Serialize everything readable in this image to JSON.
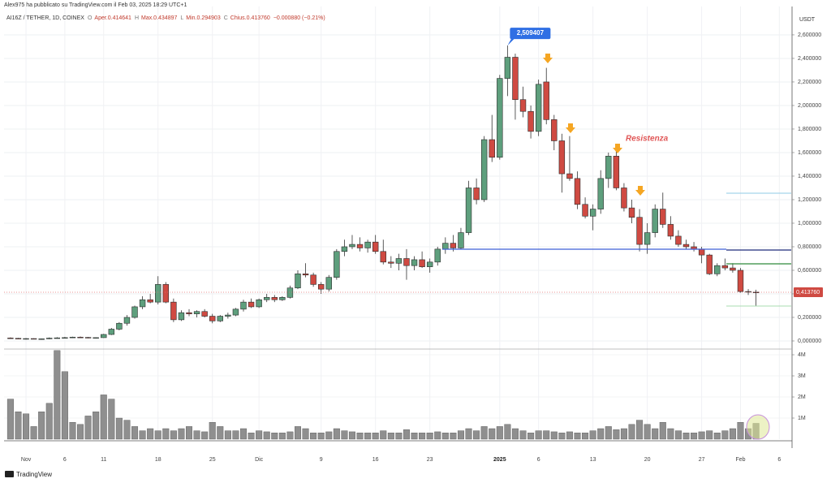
{
  "chart_data": {
    "type": "candlestick",
    "author_line": "Alex975 ha pubblicato su TradingView.com il Feb 03, 2025 18:29 UTC+1",
    "symbol": "AI16Z / TETHER, 1D, COINEX",
    "open_key": "O",
    "open_text": "Aper.0.414641",
    "high_key": "H",
    "high_text": "Max.0.434897",
    "low_key": "L",
    "low_text": "Min.0.294903",
    "close_key": "C",
    "close_text": "Chius.0.413760",
    "change_text": "−0.000880 (−0.21%)",
    "currency": "USDT",
    "annotation": "Resistenza",
    "brand": "TradingView",
    "up_color": "#5e9f7d",
    "down_color": "#cf4a42",
    "volume_color": "#8f8f8f",
    "categories": [
      "",
      "",
      "Nov",
      "",
      "",
      "",
      "",
      "6",
      "",
      "",
      "",
      "",
      "11",
      "",
      "",
      "",
      "",
      "",
      "",
      "18",
      "",
      "",
      "",
      "",
      "",
      "",
      "25",
      "",
      "",
      "",
      "",
      "",
      "Dic",
      "",
      "",
      "",
      "",
      "",
      "",
      "",
      "9",
      "",
      "",
      "",
      "",
      "",
      "",
      "16",
      "",
      "",
      "",
      "",
      "",
      "",
      "23",
      "",
      "",
      "",
      "",
      "",
      "",
      "",
      "",
      "2025",
      "",
      "",
      "",
      "",
      "6",
      "",
      "",
      "",
      "",
      "",
      "",
      "13",
      "",
      "",
      "",
      "",
      "",
      "",
      "20",
      "",
      "",
      "",
      "",
      "",
      "",
      "27",
      "",
      "",
      "",
      "",
      "Feb",
      "",
      "",
      "",
      "",
      "6"
    ],
    "open": [
      0.025,
      0.022,
      0.018,
      0.02,
      0.016,
      0.018,
      0.024,
      0.026,
      0.028,
      0.032,
      0.03,
      0.025,
      0.028,
      0.055,
      0.1,
      0.15,
      0.2,
      0.29,
      0.35,
      0.33,
      0.48,
      0.33,
      0.18,
      0.24,
      0.23,
      0.25,
      0.21,
      0.17,
      0.21,
      0.22,
      0.27,
      0.33,
      0.29,
      0.35,
      0.37,
      0.35,
      0.37,
      0.45,
      0.57,
      0.56,
      0.48,
      0.44,
      0.54,
      0.76,
      0.8,
      0.82,
      0.79,
      0.84,
      0.76,
      0.67,
      0.66,
      0.7,
      0.64,
      0.69,
      0.63,
      0.67,
      0.78,
      0.83,
      0.79,
      0.92,
      1.3,
      1.2,
      1.71,
      1.56,
      2.23,
      2.41,
      2.05,
      1.95,
      1.78,
      2.2,
      1.88,
      1.7,
      1.42,
      1.38,
      1.16,
      1.06,
      1.12,
      1.38,
      1.57,
      1.3,
      1.13,
      1.05,
      0.82,
      0.92,
      1.12,
      0.99,
      0.89,
      0.82,
      0.8,
      0.78,
      0.73,
      0.57,
      0.64,
      0.62,
      0.6,
      0.42,
      0.414641,
      null,
      null,
      null
    ],
    "high": [
      0.03,
      0.026,
      0.024,
      0.022,
      0.021,
      0.03,
      0.032,
      0.034,
      0.036,
      0.038,
      0.034,
      0.03,
      0.06,
      0.11,
      0.16,
      0.22,
      0.3,
      0.38,
      0.4,
      0.55,
      0.5,
      0.36,
      0.26,
      0.27,
      0.26,
      0.27,
      0.23,
      0.22,
      0.24,
      0.28,
      0.35,
      0.36,
      0.36,
      0.4,
      0.39,
      0.38,
      0.47,
      0.6,
      0.66,
      0.58,
      0.5,
      0.56,
      0.78,
      0.86,
      0.9,
      0.88,
      0.86,
      0.9,
      0.86,
      0.72,
      0.74,
      0.78,
      0.72,
      0.76,
      0.7,
      0.8,
      0.88,
      0.9,
      0.96,
      1.36,
      1.38,
      1.74,
      1.92,
      2.26,
      2.509407,
      2.44,
      2.16,
      2.0,
      2.22,
      2.32,
      1.92,
      1.76,
      1.74,
      1.44,
      1.22,
      1.16,
      1.45,
      1.6,
      1.62,
      1.34,
      1.2,
      1.12,
      1.0,
      1.16,
      1.26,
      1.06,
      0.94,
      0.86,
      0.84,
      0.8,
      0.74,
      0.66,
      0.7,
      0.66,
      0.62,
      0.44,
      0.434897,
      null,
      null,
      null
    ],
    "low": [
      0.018,
      0.016,
      0.012,
      0.014,
      0.01,
      0.015,
      0.02,
      0.022,
      0.024,
      0.026,
      0.022,
      0.02,
      0.026,
      0.05,
      0.09,
      0.13,
      0.19,
      0.27,
      0.32,
      0.31,
      0.32,
      0.16,
      0.17,
      0.21,
      0.2,
      0.2,
      0.15,
      0.16,
      0.19,
      0.21,
      0.25,
      0.28,
      0.28,
      0.33,
      0.33,
      0.34,
      0.36,
      0.44,
      0.54,
      0.46,
      0.4,
      0.42,
      0.52,
      0.72,
      0.78,
      0.76,
      0.75,
      0.74,
      0.65,
      0.62,
      0.6,
      0.52,
      0.6,
      0.62,
      0.58,
      0.64,
      0.74,
      0.76,
      0.78,
      0.9,
      1.16,
      1.18,
      1.52,
      1.54,
      2.08,
      1.88,
      1.9,
      1.72,
      1.74,
      1.84,
      1.62,
      1.26,
      1.36,
      1.12,
      1.04,
      0.94,
      1.08,
      1.3,
      1.28,
      1.1,
      1.0,
      0.76,
      0.74,
      0.88,
      0.96,
      0.86,
      0.8,
      0.78,
      0.76,
      0.66,
      0.56,
      0.55,
      0.6,
      0.58,
      0.41,
      0.39,
      0.294903,
      null,
      null,
      null
    ],
    "close": [
      0.022,
      0.018,
      0.02,
      0.016,
      0.018,
      0.024,
      0.026,
      0.028,
      0.032,
      0.03,
      0.025,
      0.028,
      0.055,
      0.1,
      0.15,
      0.2,
      0.29,
      0.35,
      0.33,
      0.48,
      0.33,
      0.18,
      0.24,
      0.23,
      0.25,
      0.21,
      0.17,
      0.21,
      0.22,
      0.27,
      0.33,
      0.29,
      0.35,
      0.37,
      0.35,
      0.37,
      0.45,
      0.57,
      0.56,
      0.48,
      0.44,
      0.54,
      0.76,
      0.8,
      0.82,
      0.79,
      0.84,
      0.76,
      0.67,
      0.66,
      0.7,
      0.64,
      0.69,
      0.63,
      0.67,
      0.78,
      0.83,
      0.79,
      0.92,
      1.3,
      1.2,
      1.71,
      1.56,
      2.23,
      2.41,
      2.05,
      1.95,
      1.78,
      2.18,
      1.88,
      1.7,
      1.42,
      1.38,
      1.16,
      1.06,
      1.12,
      1.38,
      1.57,
      1.3,
      1.13,
      1.05,
      0.82,
      0.92,
      1.12,
      0.99,
      0.89,
      0.82,
      0.8,
      0.78,
      0.73,
      0.57,
      0.64,
      0.62,
      0.6,
      0.42,
      0.414641,
      0.41376,
      null,
      null,
      null
    ],
    "volume": [
      1900000,
      1300000,
      1200000,
      600000,
      1300000,
      1700000,
      4200000,
      3200000,
      800000,
      700000,
      1100000,
      1300000,
      2100000,
      1900000,
      1000000,
      900000,
      600000,
      400000,
      500000,
      400000,
      500000,
      400000,
      500000,
      600000,
      400000,
      350000,
      800000,
      600000,
      400000,
      400000,
      500000,
      300000,
      400000,
      350000,
      300000,
      300000,
      350000,
      600000,
      500000,
      300000,
      300000,
      350000,
      500000,
      400000,
      350000,
      300000,
      300000,
      300000,
      400000,
      300000,
      300000,
      450000,
      300000,
      300000,
      300000,
      350000,
      300000,
      300000,
      400000,
      500000,
      400000,
      600000,
      500000,
      600000,
      700000,
      500000,
      400000,
      300000,
      400000,
      400000,
      350000,
      300000,
      350000,
      300000,
      300000,
      400000,
      500000,
      600000,
      450000,
      500000,
      700000,
      900000,
      700000,
      500000,
      800000,
      500000,
      400000,
      300000,
      300000,
      350000,
      400000,
      300000,
      400000,
      500000,
      800000,
      500000,
      750000,
      null,
      null,
      null
    ],
    "ylim": [
      -0.069,
      2.841
    ],
    "yticks": [
      {
        "value": 0,
        "label": "0,000000"
      },
      {
        "value": 0.2,
        "label": "0,200000"
      },
      {
        "value": 0.4,
        "label": "0,400000"
      },
      {
        "value": 0.6,
        "label": "0,600000"
      },
      {
        "value": 0.8,
        "label": "0,800000"
      },
      {
        "value": 1.0,
        "label": "1,000000"
      },
      {
        "value": 1.2,
        "label": "1,200000"
      },
      {
        "value": 1.4,
        "label": "1,400000"
      },
      {
        "value": 1.6,
        "label": "1,600000"
      },
      {
        "value": 1.8,
        "label": "1,800000"
      },
      {
        "value": 2.0,
        "label": "2,000000"
      },
      {
        "value": 2.2,
        "label": "2,200000"
      },
      {
        "value": 2.4,
        "label": "2,400000"
      },
      {
        "value": 2.6,
        "label": "2,600000"
      }
    ],
    "volume_ylim": [
      0,
      4270000
    ],
    "volume_yticks": [
      {
        "value": 1000000,
        "label": "1M"
      },
      {
        "value": 2000000,
        "label": "2M"
      },
      {
        "value": 3000000,
        "label": "3M"
      },
      {
        "value": 4000000,
        "label": "4M"
      }
    ],
    "last_price": {
      "value": 0.41376,
      "label": "0,413760"
    },
    "peak": {
      "value": 2.509407,
      "label": "2,509407"
    },
    "grid": true
  }
}
